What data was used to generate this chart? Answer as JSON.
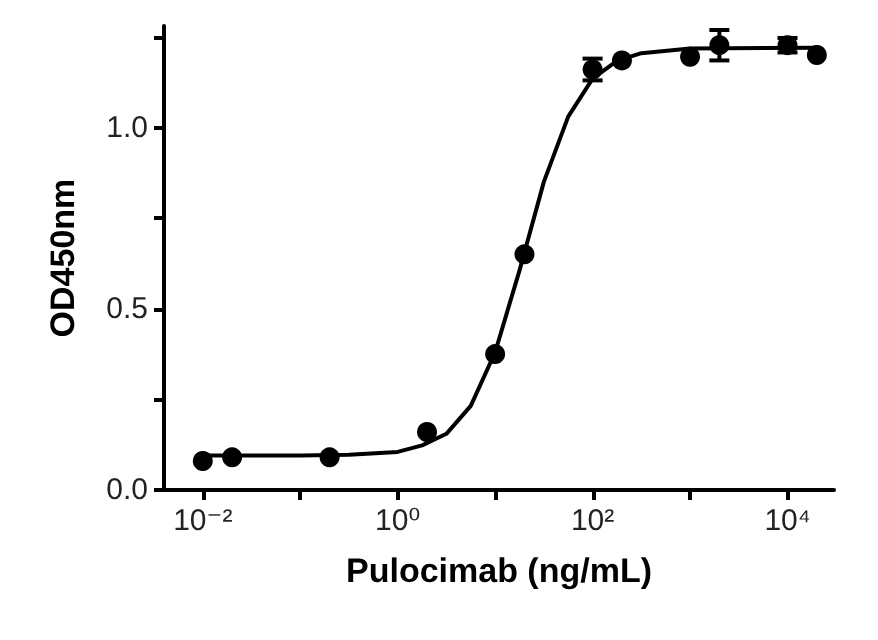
{
  "chart_data": {
    "type": "scatter",
    "xlabel": "Pulocimab (ng/mL)",
    "ylabel": "OD450nm",
    "log": "x",
    "xlim": [
      0.004,
      30000
    ],
    "xticks": [
      {
        "value": 0.01,
        "label": "10⁻²"
      },
      {
        "value": 0.1,
        "label": null
      },
      {
        "value": 1,
        "label": "10⁰"
      },
      {
        "value": 10,
        "label": null
      },
      {
        "value": 100,
        "label": "10²"
      },
      {
        "value": 1000,
        "label": null
      },
      {
        "value": 10000,
        "label": "10⁴"
      }
    ],
    "ylim": [
      0,
      1.28
    ],
    "yticks": [
      {
        "value": 0,
        "label": "0.0"
      },
      {
        "value": 0.25,
        "label": null
      },
      {
        "value": 0.5,
        "label": "0.5"
      },
      {
        "value": 0.75,
        "label": null
      },
      {
        "value": 1,
        "label": "1.0"
      },
      {
        "value": 1.25,
        "label": null
      }
    ],
    "grid": false,
    "series": [
      {
        "color": "#000000",
        "marker": "circle",
        "x": [
          0.01,
          0.02,
          0.2,
          2,
          10,
          20,
          100,
          200,
          1000,
          2000,
          10000,
          20000
        ],
        "values": [
          0.08,
          0.09,
          0.09,
          0.16,
          0.375,
          0.65,
          1.16,
          1.185,
          1.195,
          1.227,
          1.227,
          1.2
        ],
        "errors": [
          null,
          null,
          null,
          null,
          null,
          null,
          0.03,
          null,
          null,
          0.042,
          0.02,
          null
        ]
      },
      {
        "type": "line",
        "color": "#000000",
        "marker": "none",
        "line_style": "solid",
        "x": [
          0.01,
          0.1,
          0.316,
          1,
          1.78,
          3.16,
          5.62,
          10,
          17.8,
          31.6,
          56.2,
          100,
          178,
          316,
          1000,
          20000
        ],
        "values": [
          0.095,
          0.095,
          0.097,
          0.105,
          0.123,
          0.155,
          0.232,
          0.38,
          0.606,
          0.85,
          1.03,
          1.135,
          1.184,
          1.205,
          1.218,
          1.22
        ]
      }
    ]
  }
}
